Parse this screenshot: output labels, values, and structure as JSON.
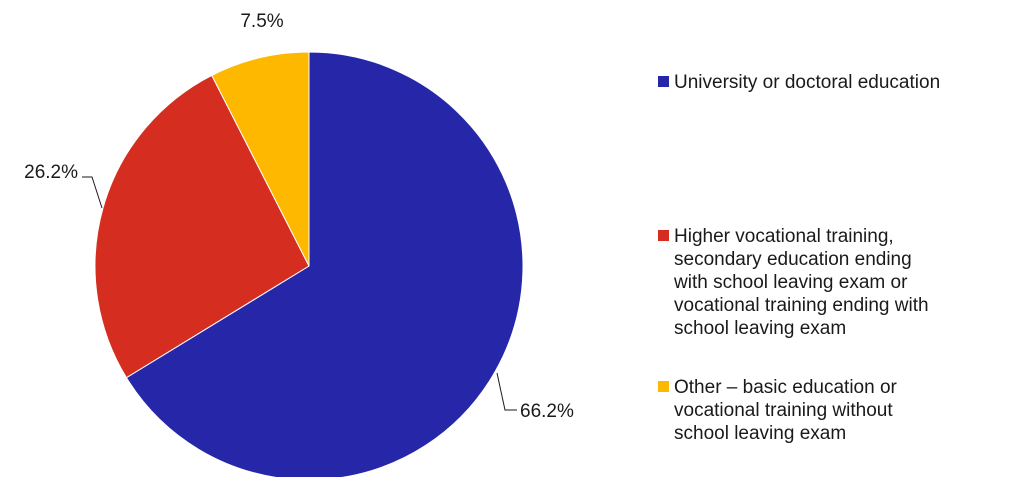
{
  "chart_data": {
    "type": "pie",
    "slices": [
      {
        "label": "University or doctoral education",
        "value": 66.2,
        "display": "66.2%",
        "color": "#2626a8"
      },
      {
        "label": "Higher vocational training,\nsecondary education ending\nwith school leaving exam or\nvocational training ending with\nschool leaving exam",
        "value": 26.2,
        "display": "26.2%",
        "color": "#d52e21"
      },
      {
        "label": "Other – basic education or\nvocational training without\nschool leaving exam",
        "value": 7.5,
        "display": "7.5%",
        "color": "#ffb800"
      }
    ],
    "start_angle_deg": 0,
    "direction": "clockwise",
    "legend_position": "right"
  }
}
